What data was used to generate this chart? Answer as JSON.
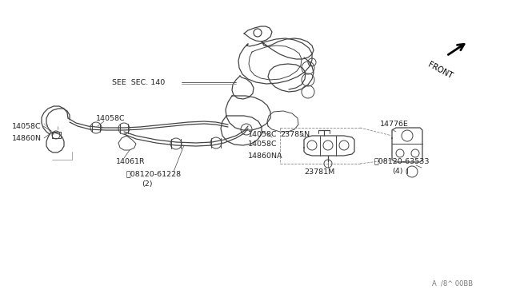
{
  "bg_color": "#ffffff",
  "line_color": "#444444",
  "text_color": "#222222",
  "fig_width": 6.4,
  "fig_height": 3.72,
  "dpi": 100,
  "labels": {
    "see_sec": "SEE  SEC. 140",
    "front": "FRONT",
    "part1a": "14058C",
    "part1b": "14058C",
    "part1c": "14058C",
    "part1d": "14058C",
    "part2": "14860N",
    "part3": "14860NA",
    "part4": "14061R",
    "part5": "23785N",
    "part6": "23781M",
    "part7": "14776E",
    "part8a": "08120-61228",
    "part8b": "(2)",
    "part9a": "08120-63533",
    "part9b": "(4)",
    "watermark": "A  /8^ 00BB"
  }
}
